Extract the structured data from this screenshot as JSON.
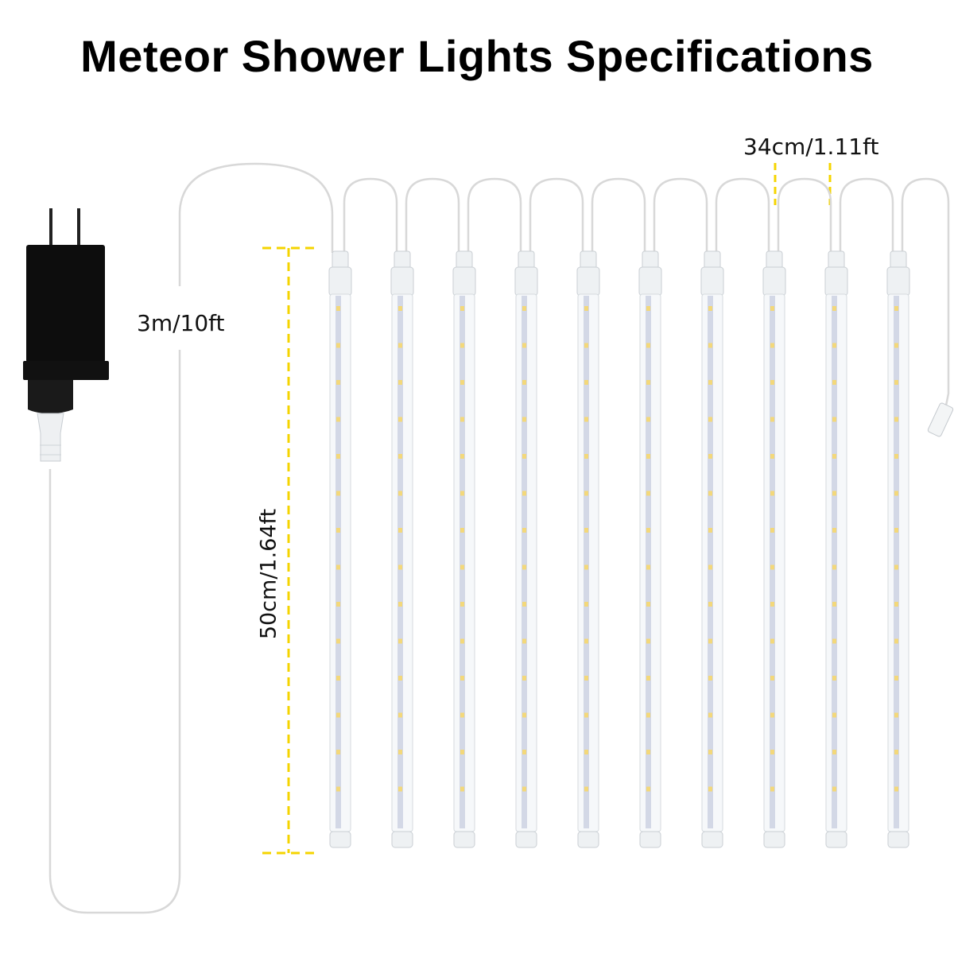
{
  "title": "Meteor Shower Lights Specifications",
  "labels": {
    "cable_length": "3m/10ft",
    "tube_length": "50cm/1.64ft",
    "tube_spacing": "34cm/1.11ft"
  },
  "tube_count": 10,
  "colors": {
    "dimension_line": "#f5d400",
    "adapter": "#111111",
    "led": "#f3d87a",
    "cable": "#d8d8d8"
  }
}
